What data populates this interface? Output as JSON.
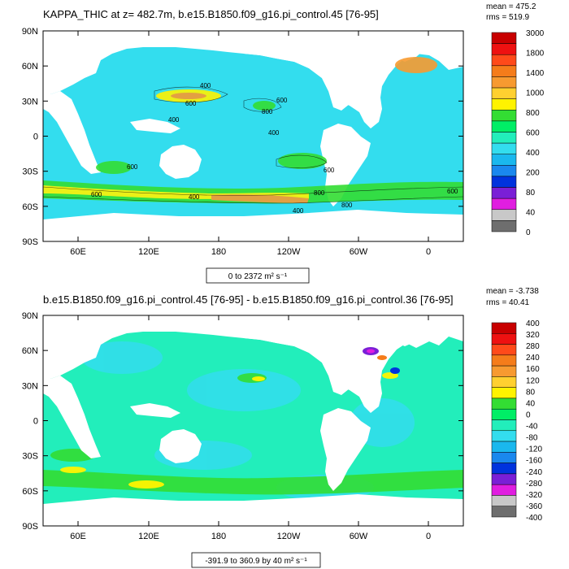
{
  "panel1": {
    "title": "KAPPA_THIC at z= 482.7m, b.e15.B1850.f09_g16.pi_control.45 [76-95]",
    "mean_label": "mean = 475.2",
    "rms_label": "rms = 519.9",
    "range_label": "0 to 2372 m² s⁻¹",
    "lat_labels": [
      "90N",
      "60N",
      "30N",
      "0",
      "30S",
      "60S",
      "90S"
    ],
    "lon_labels": [
      "60E",
      "120E",
      "180",
      "120W",
      "60W",
      "0"
    ],
    "colorbar": {
      "labels": [
        "3000",
        "1800",
        "1400",
        "1000",
        "800",
        "600",
        "400",
        "200",
        "80",
        "40",
        "0"
      ],
      "colors": [
        "#c80000",
        "#ee1111",
        "#ff4a1a",
        "#f57c1a",
        "#f79a30",
        "#ffd030",
        "#fff300",
        "#33dd33",
        "#00ee66",
        "#22eebb",
        "#33ddee",
        "#1ab8ee",
        "#1a88ee",
        "#0033dd",
        "#7a1fd6",
        "#e01ee0",
        "#c8c8c8",
        "#6e6e6e"
      ]
    },
    "contour_labels": [
      "600",
      "400",
      "600",
      "800",
      "400",
      "600",
      "600",
      "800",
      "400",
      "800",
      "600",
      "400",
      "600",
      "400"
    ]
  },
  "panel2": {
    "title": "b.e15.B1850.f09_g16.pi_control.45 [76-95] - b.e15.B1850.f09_g16.pi_control.36 [76-95]",
    "mean_label": "mean = -3.738",
    "rms_label": "rms = 40.41",
    "range_label": "-391.9 to 360.9 by 40 m² s⁻¹",
    "lat_labels": [
      "90N",
      "60N",
      "30N",
      "0",
      "30S",
      "60S",
      "90S"
    ],
    "lon_labels": [
      "60E",
      "120E",
      "180",
      "120W",
      "60W",
      "0"
    ],
    "colorbar": {
      "labels": [
        "400",
        "320",
        "280",
        "240",
        "160",
        "120",
        "80",
        "40",
        "0",
        "-40",
        "-80",
        "-120",
        "-160",
        "-240",
        "-280",
        "-320",
        "-360",
        "-400"
      ],
      "colors": [
        "#c80000",
        "#ee1111",
        "#ff4a1a",
        "#f57c1a",
        "#f79a30",
        "#ffd030",
        "#fff300",
        "#33dd33",
        "#00ee66",
        "#22eebb",
        "#33ddee",
        "#1ab8ee",
        "#1a88ee",
        "#0033dd",
        "#7a1fd6",
        "#e01ee0",
        "#c8c8c8",
        "#6e6e6e"
      ]
    }
  }
}
